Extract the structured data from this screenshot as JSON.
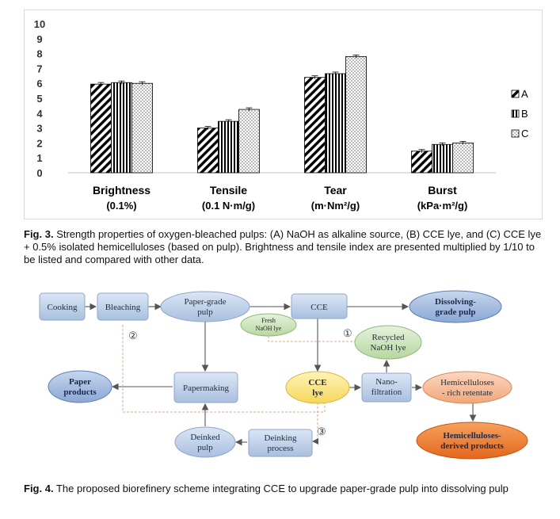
{
  "fig3": {
    "caption_label": "Fig. 3.",
    "caption_text": "Strength properties of oxygen-bleached pulps: (A) NaOH as alkaline source, (B) CCE lye, and (C) CCE lye + 0.5% isolated hemicelluloses (based on pulp). Brightness and tensile index are presented multiplied by 1/10 to be listed and compared with other data."
  },
  "chart_data": {
    "type": "bar",
    "categories": [
      "Brightness",
      "Tensile",
      "Tear",
      "Burst"
    ],
    "category_units": [
      "(0.1%)",
      "(0.1 N·m/g)",
      "(m·Nm²/g)",
      "(kPa·m²/g)"
    ],
    "series": [
      {
        "name": "A",
        "values": [
          5.95,
          3.0,
          6.4,
          1.45
        ]
      },
      {
        "name": "B",
        "values": [
          6.05,
          3.45,
          6.65,
          1.9
        ]
      },
      {
        "name": "C",
        "values": [
          6.0,
          4.25,
          7.8,
          2.0
        ]
      }
    ],
    "ylim": [
      0,
      10
    ],
    "yticks": [
      "0",
      "1",
      "2",
      "3",
      "4",
      "5",
      "6",
      "7",
      "8",
      "9",
      "10"
    ],
    "legend_position": "right",
    "grid": false,
    "error_bars": true
  },
  "fig4": {
    "caption_label": "Fig. 4.",
    "caption_text": "The proposed biorefinery scheme integrating CCE to upgrade paper-grade pulp into dissolving pulp",
    "nodes": {
      "cooking": "Cooking",
      "bleaching": "Bleaching",
      "paper_grade_1": "Paper-grade",
      "paper_grade_2": "pulp",
      "cce": "CCE",
      "dissolving_1": "Dissolving-",
      "dissolving_2": "grade pulp",
      "fresh_1": "Fresh",
      "fresh_2": "NaOH lye",
      "recycled_1": "Recycled",
      "recycled_2": "NaOH lye",
      "paper_products_1": "Paper",
      "paper_products_2": "products",
      "papermaking": "Papermaking",
      "cce_lye_1": "CCE",
      "cce_lye_2": "lye",
      "nano_1": "Nano-",
      "nano_2": "filtration",
      "hemi_ret_1": "Hemicelluloses",
      "hemi_ret_2": "- rich retentate",
      "deinked_1": "Deinked",
      "deinked_2": "pulp",
      "deinking_1": "Deinking",
      "deinking_2": "process",
      "hemi_prod_1": "Hemicelluloses-",
      "hemi_prod_2": "derived products",
      "marker_1": "①",
      "marker_2": "②",
      "marker_3": "③"
    }
  }
}
